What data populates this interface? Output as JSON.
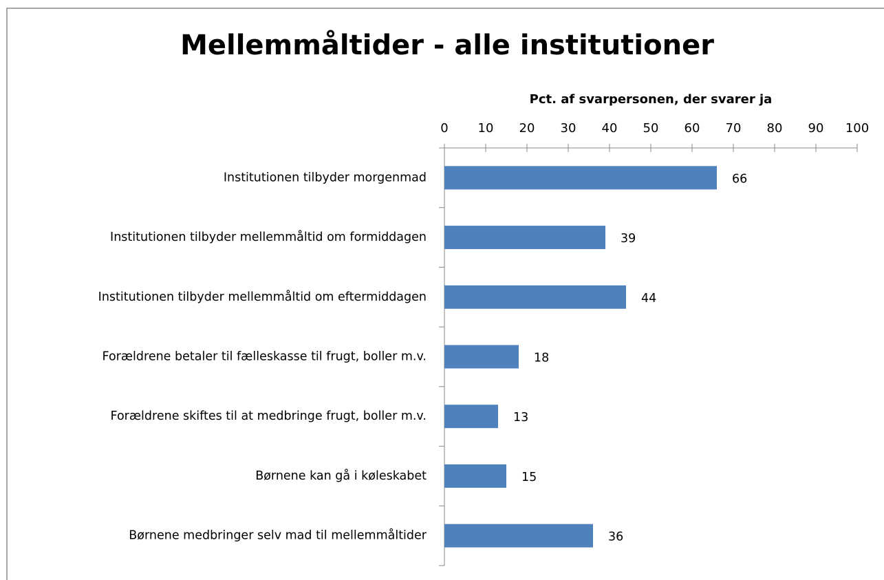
{
  "chart_data": {
    "type": "bar",
    "orientation": "horizontal",
    "title": "Mellemmåltider - alle institutioner",
    "x_label": "Pct. af svarpersonen, der svarer ja",
    "categories": [
      "Institutionen tilbyder morgenmad",
      "Institutionen tilbyder mellemmåltid om formiddagen",
      "Institutionen tilbyder mellemmåltid om eftermiddagen",
      "Forældrene betaler til fælleskasse til frugt, boller m.v.",
      "Forældrene skiftes til at medbringe frugt, boller m.v.",
      "Børnene kan gå i køleskabet",
      "Børnene medbringer selv mad til mellemmåltider"
    ],
    "values": [
      66,
      39,
      44,
      18,
      13,
      15,
      36
    ],
    "color": "#4f81bd",
    "xlim": [
      0,
      100
    ],
    "xticks": [
      0,
      10,
      20,
      30,
      40,
      50,
      60,
      70,
      80,
      90,
      100
    ]
  }
}
